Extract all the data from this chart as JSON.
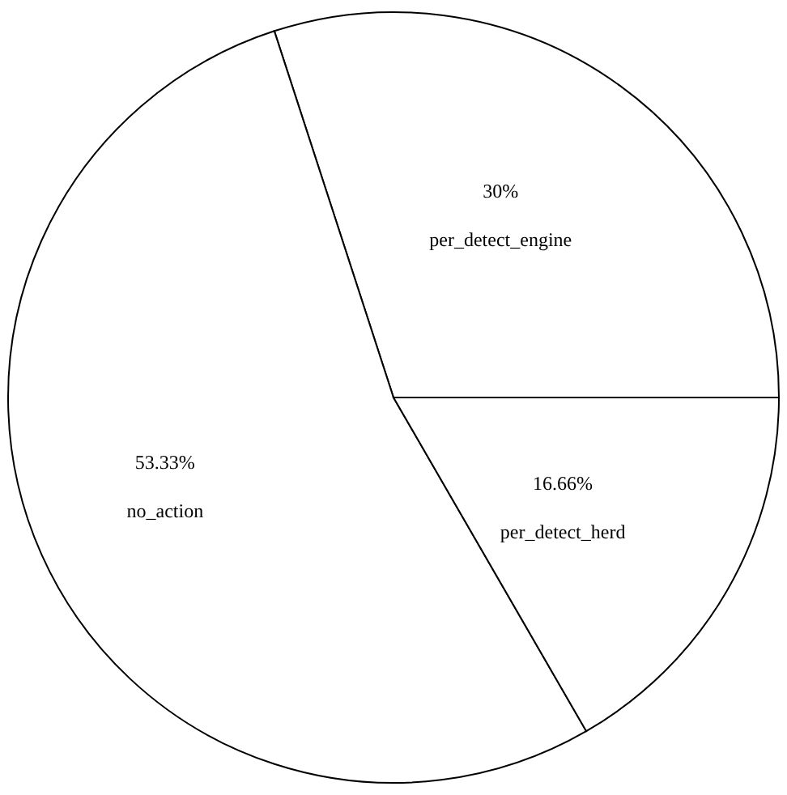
{
  "chart_data": {
    "type": "pie",
    "categories": [
      "per_detect_engine",
      "no_action",
      "per_detect_herd"
    ],
    "values": [
      30,
      53.33,
      16.66
    ],
    "value_labels": [
      "30%",
      "53.33%",
      "16.66%"
    ],
    "colors": [
      "#ffffff",
      "#ffffff",
      "#ffffff"
    ]
  }
}
